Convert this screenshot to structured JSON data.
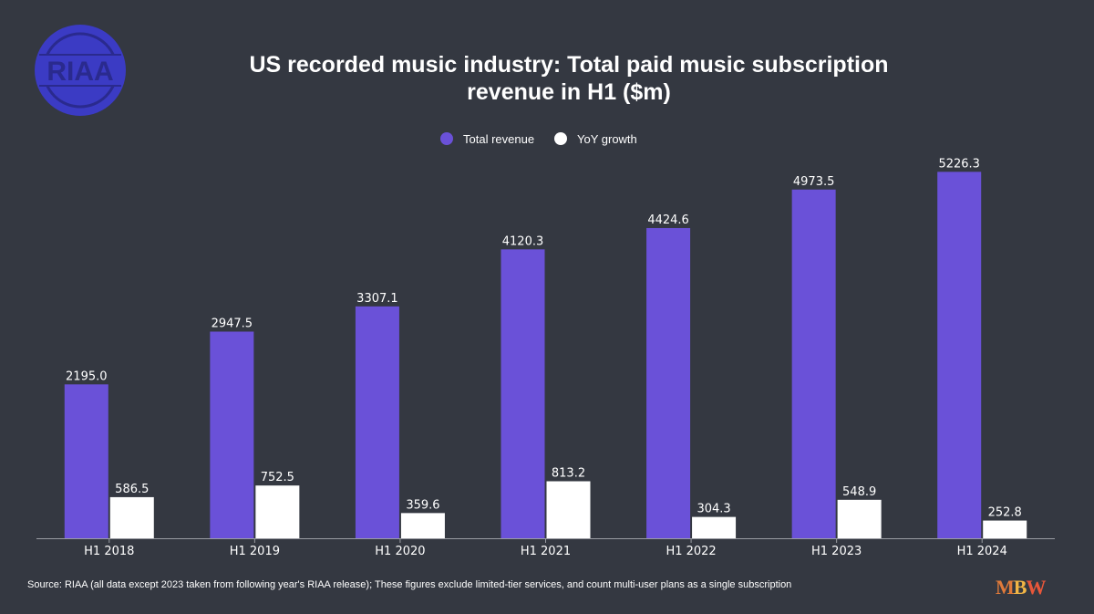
{
  "title_line1": "US recorded music industry: Total paid music subscription",
  "title_line2": "revenue in H1 ($m)",
  "source": "Source: RIAA (all data except 2023 taken from following year's RIAA release); These figures exclude limited-tier services, and count multi-user plans as a single subscription",
  "logos": {
    "riaa": "RIAA",
    "mbw_m": "M",
    "mbw_b": "B",
    "mbw_w": "W"
  },
  "colors": {
    "background": "#343841",
    "total_revenue": "#6a51d8",
    "yoy_growth": "#ffffff",
    "riaa_logo": "#3b3bc4"
  },
  "chart_data": {
    "type": "bar",
    "categories": [
      "H1 2018",
      "H1 2019",
      "H1 2020",
      "H1 2021",
      "H1 2022",
      "H1 2023",
      "H1 2024"
    ],
    "series": [
      {
        "name": "Total revenue",
        "values": [
          2195.0,
          2947.5,
          3307.1,
          4120.3,
          4424.6,
          4973.5,
          5226.3
        ]
      },
      {
        "name": "YoY growth",
        "values": [
          586.5,
          752.5,
          359.6,
          813.2,
          304.3,
          548.9,
          252.8
        ]
      }
    ],
    "legend_position": "top-center",
    "grid": false,
    "ylim": [
      0,
      5400
    ]
  }
}
